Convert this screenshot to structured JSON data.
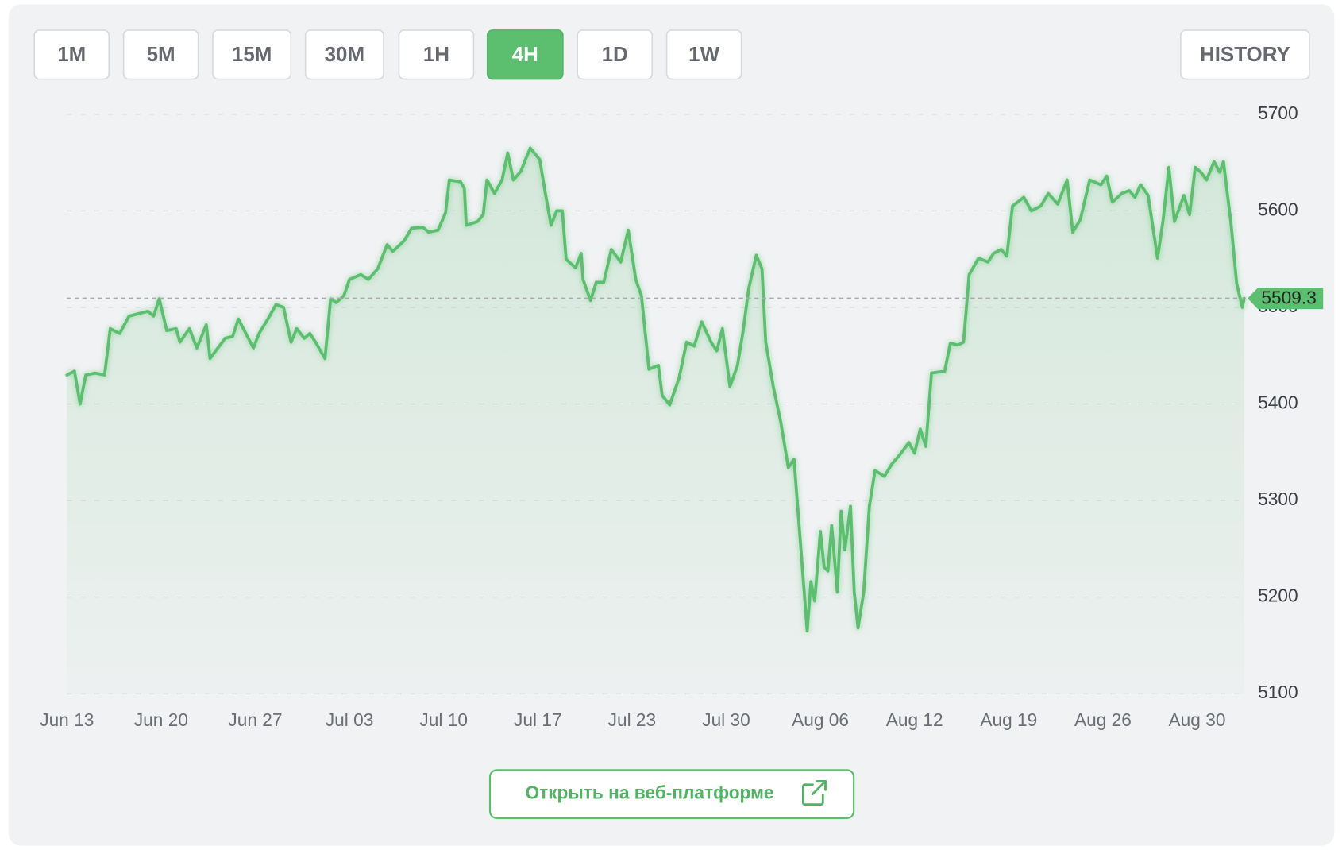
{
  "toolbar": {
    "timeframes": [
      {
        "label": "1M",
        "active": false
      },
      {
        "label": "5M",
        "active": false
      },
      {
        "label": "15M",
        "active": false
      },
      {
        "label": "30M",
        "active": false
      },
      {
        "label": "1H",
        "active": false
      },
      {
        "label": "4H",
        "active": true
      },
      {
        "label": "1D",
        "active": false
      },
      {
        "label": "1W",
        "active": false
      }
    ],
    "history": "HISTORY"
  },
  "chart_data": {
    "type": "line",
    "color": "#5cbf6f",
    "grid": true,
    "x": [
      0,
      0.4,
      0.7,
      1.0,
      1.5,
      2.0,
      2.3,
      2.8,
      3.3,
      3.7,
      4.3,
      4.6,
      4.9,
      5.3,
      5.8,
      6.0,
      6.5,
      6.9,
      7.4,
      7.6,
      7.9,
      8.4,
      8.8,
      9.1,
      9.5,
      9.9,
      10.2,
      10.7,
      11.1,
      11.5,
      11.9,
      12.2,
      12.6,
      12.9,
      13.2,
      13.7,
      14.0,
      14.3,
      14.7,
      15.0,
      15.6,
      16.0,
      16.5,
      17.0,
      17.3,
      17.9,
      18.3,
      18.9,
      19.2,
      19.7,
      20.1,
      20.3,
      20.9,
      21.1,
      21.2,
      21.8,
      22.1,
      22.3,
      22.7,
      23.1,
      23.4,
      23.7,
      24.1,
      24.3,
      24.6,
      25.1,
      25.4,
      25.7,
      26.0,
      26.3,
      26.5,
      27.0,
      27.3,
      27.4,
      27.8,
      28.1,
      28.5,
      28.9,
      29.4,
      29.8,
      30.2,
      30.5,
      30.9,
      31.4,
      31.6,
      32.0,
      32.5,
      32.9,
      33.3,
      33.7,
      34.2,
      34.5,
      34.8,
      35.2,
      35.6,
      35.9,
      36.2,
      36.6,
      36.9,
      37.1,
      37.5,
      37.9,
      38.3,
      38.6,
      38.9,
      39.3,
      39.5,
      39.7,
      40.0,
      40.2,
      40.4,
      40.6,
      40.9,
      41.1,
      41.3,
      41.6,
      41.8,
      42.0,
      42.3,
      42.6,
      42.9,
      43.4,
      43.8,
      44.2,
      44.7,
      45.0,
      45.3,
      45.6,
      45.9,
      46.6,
      46.9,
      47.3,
      47.6,
      47.9,
      48.4,
      48.9,
      49.2,
      49.6,
      49.9,
      50.2,
      50.8,
      51.2,
      51.7,
      52.1,
      52.6,
      53.1,
      53.4,
      53.8,
      54.3,
      54.9,
      55.2,
      55.5,
      56.0,
      56.4,
      56.7,
      57.0,
      57.4,
      57.9,
      58.2,
      58.5,
      58.8,
      59.3,
      59.6,
      59.9,
      60.2,
      60.5,
      60.9,
      61.2,
      61.4,
      61.8,
      62.1,
      62.4,
      62.5
    ],
    "values": [
      5430,
      5434,
      5400,
      5430,
      5432,
      5430,
      5478,
      5473,
      5491,
      5493,
      5496,
      5491,
      5509,
      5476,
      5478,
      5464,
      5478,
      5458,
      5482,
      5447,
      5455,
      5468,
      5470,
      5488,
      5473,
      5458,
      5473,
      5489,
      5503,
      5500,
      5464,
      5478,
      5468,
      5473,
      5464,
      5447,
      5509,
      5505,
      5512,
      5529,
      5534,
      5529,
      5540,
      5565,
      5558,
      5569,
      5582,
      5583,
      5578,
      5580,
      5598,
      5632,
      5630,
      5623,
      5585,
      5589,
      5596,
      5632,
      5618,
      5632,
      5660,
      5632,
      5641,
      5651,
      5665,
      5653,
      5618,
      5585,
      5600,
      5600,
      5550,
      5541,
      5556,
      5529,
      5507,
      5526,
      5526,
      5560,
      5547,
      5580,
      5529,
      5512,
      5436,
      5440,
      5409,
      5399,
      5427,
      5464,
      5460,
      5485,
      5464,
      5455,
      5478,
      5418,
      5440,
      5476,
      5520,
      5554,
      5540,
      5464,
      5418,
      5381,
      5334,
      5343,
      5267,
      5165,
      5216,
      5196,
      5268,
      5231,
      5227,
      5274,
      5205,
      5289,
      5249,
      5294,
      5205,
      5168,
      5205,
      5294,
      5331,
      5325,
      5338,
      5347,
      5360,
      5349,
      5374,
      5356,
      5432,
      5434,
      5463,
      5461,
      5464,
      5534,
      5551,
      5547,
      5556,
      5560,
      5553,
      5605,
      5614,
      5600,
      5605,
      5618,
      5607,
      5632,
      5578,
      5591,
      5632,
      5627,
      5636,
      5609,
      5618,
      5621,
      5614,
      5627,
      5616,
      5551,
      5591,
      5645,
      5589,
      5616,
      5596,
      5645,
      5640,
      5632,
      5651,
      5640,
      5651,
      5587,
      5525,
      5500,
      5509.3
    ],
    "xlim": [
      0,
      62.5
    ],
    "xticks": [
      {
        "value": 0,
        "label": "Jun 13"
      },
      {
        "value": 5,
        "label": "Jun 20"
      },
      {
        "value": 10,
        "label": "Jun 27"
      },
      {
        "value": 15,
        "label": "Jul 03"
      },
      {
        "value": 20,
        "label": "Jul 10"
      },
      {
        "value": 25,
        "label": "Jul 17"
      },
      {
        "value": 30,
        "label": "Jul 23"
      },
      {
        "value": 35,
        "label": "Jul 30"
      },
      {
        "value": 40,
        "label": "Aug 06"
      },
      {
        "value": 45,
        "label": "Aug 12"
      },
      {
        "value": 50,
        "label": "Aug 19"
      },
      {
        "value": 55,
        "label": "Aug 26"
      },
      {
        "value": 60,
        "label": "Aug 30"
      }
    ],
    "ylim": [
      5100,
      5700
    ],
    "yticks": [
      5100,
      5200,
      5300,
      5400,
      5500,
      5600,
      5700
    ]
  },
  "footer": {
    "button": "Открыть на веб-платформе"
  }
}
